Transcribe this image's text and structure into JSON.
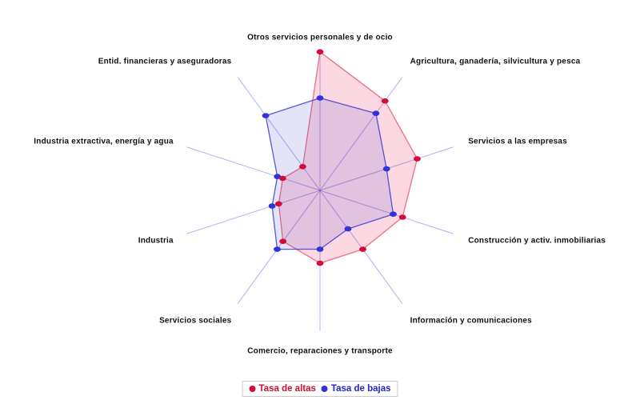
{
  "chart_data": {
    "type": "radar",
    "title": "",
    "categories": [
      "Otros servicios personales y de ocio",
      "Agricultura, ganadería, silvicultura y pesca",
      "Servicios a las empresas",
      "Construcción y activ. inmobiliarias",
      "Información y comunicaciones",
      "Comercio, reparaciones y transporte",
      "Servicios sociales",
      "Industria",
      "Industria extractiva, energía y agua",
      "Entid. financieras y aseguradoras"
    ],
    "series": [
      {
        "name": "Tasa de altas",
        "color": "#d40a38",
        "label_color": "#cc1133",
        "stroke": "rgba(220,10,60,0.55)",
        "fill": "rgba(232,0,60,0.15)",
        "values": [
          99,
          79,
          73,
          62,
          52,
          52,
          45,
          31,
          28,
          21
        ]
      },
      {
        "name": "Tasa de bajas",
        "color": "#3232d8",
        "label_color": "#2424cc",
        "stroke": "rgba(48,48,208,0.8)",
        "fill": "rgba(48,48,208,0.13)",
        "values": [
          66,
          68,
          50,
          55,
          34,
          42,
          52,
          36,
          32,
          66
        ]
      }
    ],
    "rlim": [
      0,
      100
    ],
    "grid": "radial-spokes-only",
    "axes_color": "rgba(60,60,220,0.4)",
    "legend_position": "bottom-center",
    "label_color": "#111111",
    "background": "#ffffff"
  }
}
